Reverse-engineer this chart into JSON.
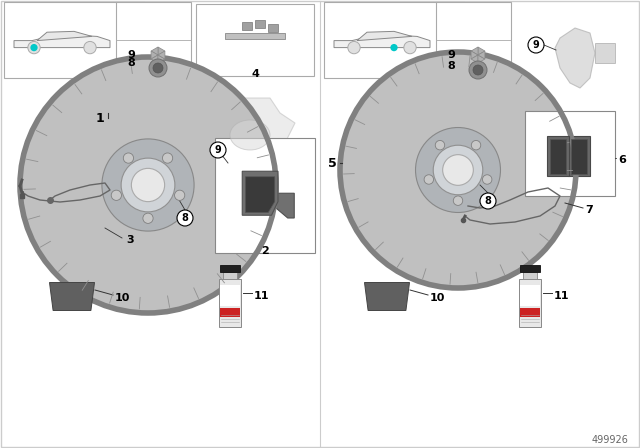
{
  "bg_color": "#ffffff",
  "part_number": "499926",
  "teal_color": "#00c8c8",
  "disc_color": "#b8b8b8",
  "disc_edge": "#888888",
  "hub_color": "#a0a0a0",
  "dark_color": "#606060",
  "box_ec": "#999999",
  "label_fs": 9,
  "small_fs": 7.5,
  "divider_color": "#cccccc"
}
